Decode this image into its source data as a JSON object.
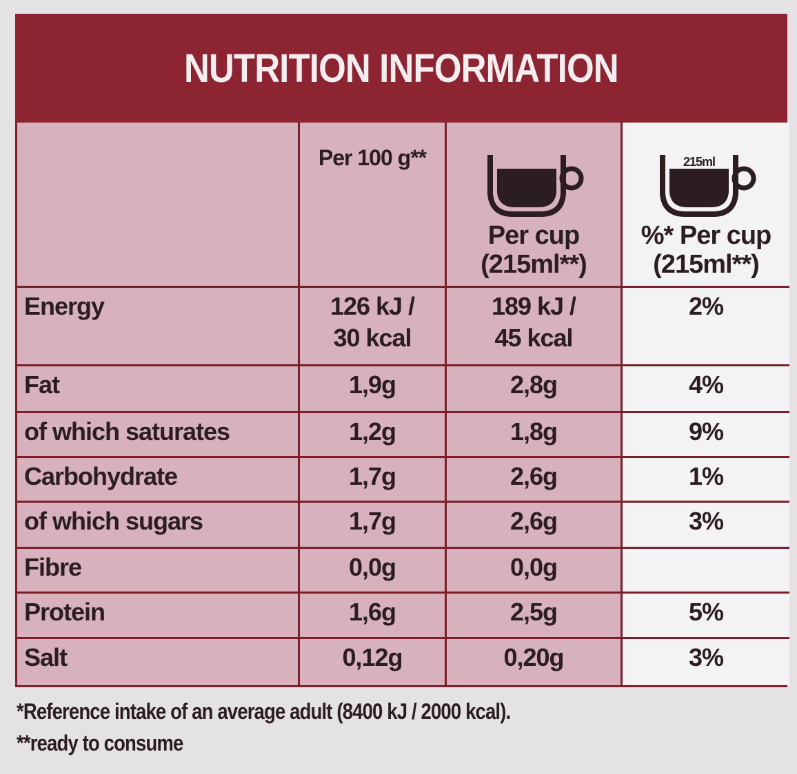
{
  "title": "NUTRITION INFORMATION",
  "table": {
    "columns": [
      "Per 100 g**",
      "Per cup\n(215ml**)",
      "%* Per cup\n(215ml**)"
    ],
    "cup_label": "215ml",
    "rows": [
      [
        "Energy",
        "126 kJ /\n30 kcal",
        "189 kJ /\n45 kcal",
        "2%"
      ],
      [
        "Fat",
        "1,9g",
        "2,8g",
        "4%"
      ],
      [
        "of which saturates",
        "1,2g",
        "1,8g",
        "9%"
      ],
      [
        "Carbohydrate",
        "1,7g",
        "2,6g",
        "1%"
      ],
      [
        "of which sugars",
        "1,7g",
        "2,6g",
        "3%"
      ],
      [
        "Fibre",
        "0,0g",
        "0,0g"
      ],
      [
        "Protein",
        "1,6g",
        "2,5g",
        "5%"
      ],
      [
        "Salt",
        "0,12g",
        "0,20g",
        "3%"
      ]
    ]
  },
  "footnotes": [
    "*Reference intake of an average adult (8400 kJ / 2000 kcal).",
    "**ready to consume"
  ]
}
